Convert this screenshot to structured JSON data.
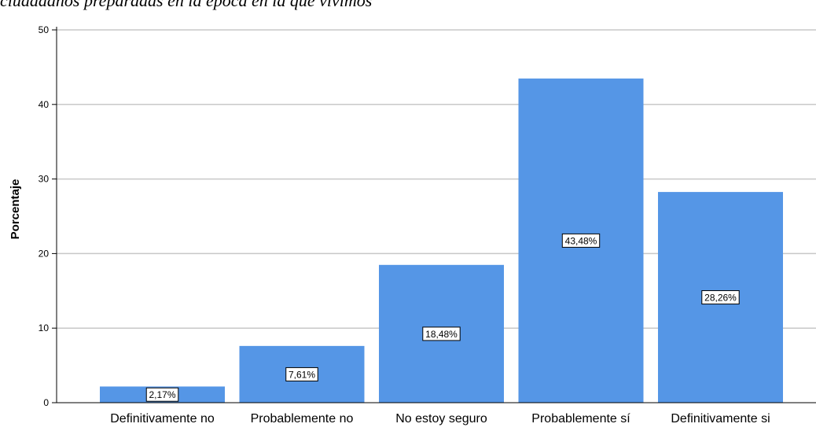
{
  "caption": {
    "partial_text": "ciudadanos preparadas en la época en la que vivimos"
  },
  "chart_data": {
    "type": "bar",
    "categories": [
      "Definitivamente no",
      "Probablemente no",
      "No estoy seguro",
      "Probablemente sí",
      "Definitivamente si"
    ],
    "values": [
      2.17,
      7.61,
      18.48,
      43.48,
      28.26
    ],
    "data_labels": [
      "2,17%",
      "7,61%",
      "18,48%",
      "43,48%",
      "28,26%"
    ],
    "ylabel": "Porcentaje",
    "xlabel": "",
    "ylim": [
      0,
      50
    ],
    "yticks": [
      0,
      10,
      20,
      30,
      40,
      50
    ],
    "grid": true,
    "bar_color": "#5596E6",
    "grid_color": "#C8C8C8"
  }
}
